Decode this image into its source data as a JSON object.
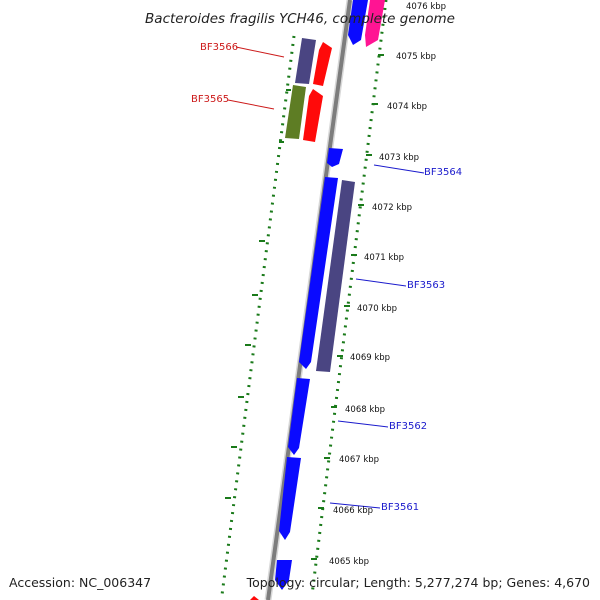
{
  "title": "Bacteroides fragilis YCH46, complete genome",
  "footer": {
    "accession": "Accession: NC_006347",
    "topology": "Topology: circular; Length: 5,277,274 bp; Genes: 4,670"
  },
  "colors": {
    "backbone": "#8c8c8c",
    "dots": "#1a7a1a",
    "blue_gene": "#0a0aff",
    "purple_gene": "#4a4582",
    "red_gene": "#ff0a0a",
    "olive_gene": "#5e7d24",
    "magenta_gene": "#ff1493",
    "label_blue": "#1a1acc",
    "label_red": "#cc1a1a"
  },
  "kbp_labels": [
    "4076 kbp",
    "4075 kbp",
    "4074 kbp",
    "4073 kbp",
    "4072 kbp",
    "4071 kbp",
    "4070 kbp",
    "4069 kbp",
    "4068 kbp",
    "4067 kbp",
    "4066 kbp",
    "4065 kbp"
  ],
  "gene_labels": [
    "BF3566",
    "BF3565",
    "BF3564",
    "BF3563",
    "BF3562",
    "BF3561"
  ]
}
